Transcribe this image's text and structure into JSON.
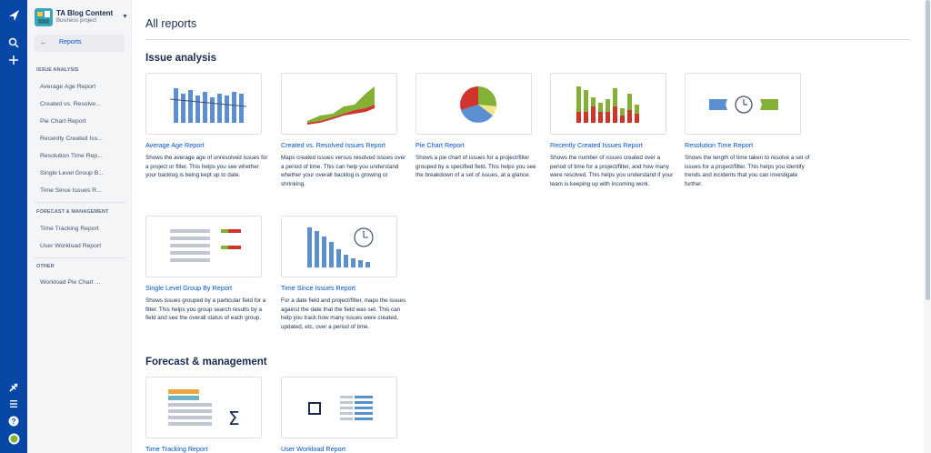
{
  "global_nav": {
    "icons": [
      "jira-logo-icon",
      "search-icon",
      "create-plus-icon",
      "notifications-icon",
      "menu-icon",
      "help-icon",
      "profile-avatar-icon"
    ]
  },
  "project": {
    "name": "TA Blog Content",
    "type": "Business project"
  },
  "sidebar": {
    "back_label": "Reports",
    "sections": [
      {
        "title": "ISSUE ANALYSIS",
        "items": [
          "Average Age Report",
          "Created vs. Resolve...",
          "Pie Chart Report",
          "Recently Created Iss...",
          "Resolution Time Rep...",
          "Single Level Group B...",
          "Time Since Issues R..."
        ]
      },
      {
        "title": "FORECAST & MANAGEMENT",
        "items": [
          "Time Tracking Report",
          "User Workload Report"
        ]
      },
      {
        "title": "OTHER",
        "items": [
          "Workload Pie Chart ..."
        ]
      }
    ]
  },
  "main": {
    "title": "All reports",
    "sections": [
      {
        "heading": "Issue analysis",
        "cards": [
          {
            "title": "Average Age Report",
            "desc": "Shows the average age of unresolved issues for a project or filter. This helps you see whether your backlog is being kept up to date."
          },
          {
            "title": "Created vs. Resolved Issues Report",
            "desc": "Maps created issues versus resolved issues over a period of time. This can help you understand whether your overall backlog is growing or shrinking."
          },
          {
            "title": "Pie Chart Report",
            "desc": "Shows a pie chart of issues for a project/filter grouped by a specified field. This helps you see the breakdown of a set of issues, at a glance."
          },
          {
            "title": "Recently Created Issues Report",
            "desc": "Shows the number of issues created over a period of time for a project/filter, and how many were resolved. This helps you understand if your team is keeping up with incoming work."
          },
          {
            "title": "Resolution Time Report",
            "desc": "Shows the length of time taken to resolve a set of issues for a project/filter. This helps you identify trends and incidents that you can investigate further."
          },
          {
            "title": "Single Level Group By Report",
            "desc": "Shows issues grouped by a particular field for a filter. This helps you group search results by a field and see the overall status of each group."
          },
          {
            "title": "Time Since Issues Report",
            "desc": "For a date field and project/filter, maps the issues against the date that the field was set. This can help you track how many issues were created, updated, etc, over a period of time."
          }
        ]
      },
      {
        "heading": "Forecast & management",
        "cards": [
          {
            "title": "Time Tracking Report",
            "desc": ""
          },
          {
            "title": "User Workload Report",
            "desc": ""
          }
        ]
      }
    ]
  },
  "colors": {
    "nav": "#0747a6",
    "link": "#0052cc",
    "blue": "#5b8fd0",
    "green": "#84b135",
    "red": "#d0352d",
    "orange": "#f0a53c"
  }
}
